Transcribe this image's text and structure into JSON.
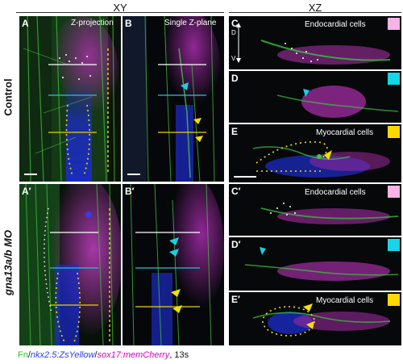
{
  "headers": {
    "xy": "XY",
    "xz": "XZ"
  },
  "rows": {
    "control": "Control",
    "mo": "gna13a/b MO"
  },
  "panels": {
    "A": {
      "label": "A",
      "text": "Z-projection"
    },
    "B": {
      "label": "B",
      "text": "Single Z-plane"
    },
    "C": {
      "label": "C",
      "text": "Endocardial cells"
    },
    "D": {
      "label": "D"
    },
    "E": {
      "label": "E",
      "text": "Myocardial cells"
    },
    "A2": {
      "label": "A′"
    },
    "B2": {
      "label": "B′"
    },
    "C2": {
      "label": "C′",
      "text": "Endocardial cells"
    },
    "D2": {
      "label": "D′"
    },
    "E2": {
      "label": "E′",
      "text": "Myocardial cells"
    }
  },
  "axis": {
    "d": "D",
    "v": "V"
  },
  "caption": {
    "fn": "Fn",
    "sep1": "/",
    "nkx": "nkx2.5:ZsYellow",
    "sep2": "/",
    "sox": "sox17:memCherry",
    "tail": ", 13s"
  },
  "colors": {
    "endocardial_marker": "#f6b3e6",
    "cyan_marker": "#17d4e6",
    "myocardial_marker": "#ffd800",
    "white_line": "#ffffff",
    "cyan_line": "#19c8d8",
    "yellow_line": "#e6d200"
  }
}
